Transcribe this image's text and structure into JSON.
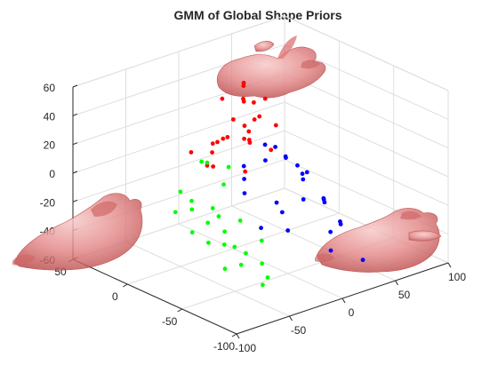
{
  "chart_data": {
    "type": "scatter3d",
    "title": "GMM of Global Shape Priors",
    "xlabel": "",
    "ylabel": "",
    "zlabel": "",
    "xlim": [
      -100,
      100
    ],
    "ylim": [
      -100,
      50
    ],
    "zlim": [
      -60,
      60
    ],
    "x_ticks": [
      -100,
      -50,
      0,
      50,
      100
    ],
    "y_ticks": [
      -100,
      -50,
      0,
      50
    ],
    "z_ticks": [
      -60,
      -40,
      -20,
      0,
      20,
      40,
      60
    ],
    "grid": true,
    "box": false,
    "colors": {
      "cluster_1": "#ff0000",
      "cluster_2": "#00ff00",
      "cluster_3": "#0000ff",
      "shape_fill": "#e86a6a",
      "shape_edge": "#b03030"
    },
    "series": [
      {
        "color": "#ff0000",
        "points": [
          [
            15,
            5,
            50
          ],
          [
            20,
            10,
            45
          ],
          [
            10,
            0,
            40
          ],
          [
            25,
            -5,
            40
          ],
          [
            5,
            15,
            38
          ],
          [
            30,
            20,
            30
          ],
          [
            -10,
            -20,
            35
          ],
          [
            0,
            0,
            30
          ],
          [
            -20,
            -10,
            25
          ],
          [
            -40,
            -20,
            30
          ],
          [
            20,
            0,
            25
          ],
          [
            35,
            10,
            20
          ],
          [
            0,
            -10,
            20
          ],
          [
            -15,
            0,
            18
          ],
          [
            10,
            -5,
            15
          ],
          [
            -30,
            -40,
            15
          ],
          [
            -35,
            -10,
            10
          ],
          [
            -45,
            -5,
            20
          ],
          [
            15,
            -20,
            12
          ],
          [
            25,
            10,
            12
          ],
          [
            -5,
            -20,
            22
          ],
          [
            40,
            20,
            25
          ],
          [
            -20,
            0,
            12
          ],
          [
            10,
            15,
            10
          ],
          [
            30,
            -10,
            22
          ],
          [
            -50,
            -30,
            20
          ]
        ]
      },
      {
        "color": "#00ff00",
        "points": [
          [
            -35,
            -10,
            12
          ],
          [
            -25,
            -20,
            10
          ],
          [
            -30,
            0,
            8
          ],
          [
            -40,
            -30,
            5
          ],
          [
            -60,
            -20,
            -5
          ],
          [
            -55,
            -40,
            -10
          ],
          [
            -50,
            0,
            -8
          ],
          [
            -65,
            -10,
            -15
          ],
          [
            -45,
            -50,
            -12
          ],
          [
            -70,
            -30,
            -5
          ],
          [
            -80,
            -40,
            -15
          ],
          [
            -70,
            -60,
            -10
          ],
          [
            -60,
            -50,
            -25
          ],
          [
            -75,
            -80,
            -25
          ],
          [
            -50,
            -60,
            -30
          ],
          [
            -55,
            -30,
            -18
          ],
          [
            -40,
            -20,
            -15
          ],
          [
            -45,
            -70,
            -35
          ],
          [
            -80,
            -70,
            -30
          ],
          [
            -65,
            -90,
            -38
          ],
          [
            -35,
            -60,
            -25
          ],
          [
            -50,
            -80,
            -40
          ],
          [
            -75,
            -50,
            -20
          ],
          [
            -40,
            -40,
            -35
          ]
        ]
      },
      {
        "color": "#0000ff",
        "points": [
          [
            30,
            0,
            5
          ],
          [
            20,
            -10,
            0
          ],
          [
            40,
            -20,
            -5
          ],
          [
            10,
            0,
            -5
          ],
          [
            0,
            -10,
            -8
          ],
          [
            50,
            10,
            -5
          ],
          [
            35,
            -30,
            -10
          ],
          [
            25,
            -40,
            -18
          ],
          [
            10,
            -30,
            -20
          ],
          [
            60,
            10,
            -15
          ],
          [
            70,
            20,
            -20
          ],
          [
            55,
            -10,
            -18
          ],
          [
            -10,
            -20,
            -12
          ],
          [
            45,
            -40,
            -25
          ],
          [
            0,
            -50,
            -30
          ],
          [
            30,
            -60,
            -35
          ],
          [
            65,
            -20,
            -35
          ],
          [
            80,
            10,
            -30
          ],
          [
            75,
            -10,
            -40
          ],
          [
            20,
            -70,
            -42
          ],
          [
            5,
            -40,
            -22
          ],
          [
            50,
            -50,
            -38
          ],
          [
            -15,
            -40,
            -28
          ],
          [
            70,
            -30,
            -48
          ],
          [
            40,
            -80,
            -50
          ]
        ]
      }
    ]
  }
}
